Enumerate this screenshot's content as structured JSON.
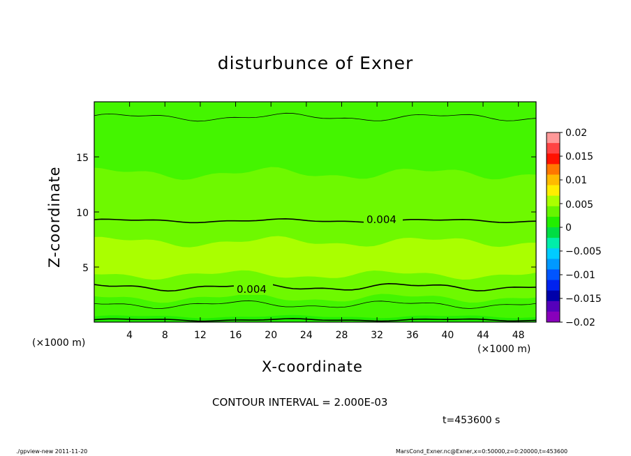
{
  "chart_data": {
    "type": "heatmap",
    "title": "disturbunce of Exner",
    "xlabel": "X-coordinate",
    "ylabel": "Z-coordinate",
    "x_unit": "(×1000 m)",
    "xlim": [
      0,
      50
    ],
    "ylim": [
      0,
      20
    ],
    "x_ticks": [
      4,
      8,
      12,
      16,
      20,
      24,
      28,
      32,
      36,
      40,
      44,
      48
    ],
    "y_ticks": [
      5,
      10,
      15
    ],
    "colorbar": {
      "ticks": [
        "0.02",
        "0.015",
        "0.01",
        "0.005",
        "0",
        "−0.005",
        "−0.01",
        "−0.015",
        "−0.02"
      ],
      "range": [
        -0.02,
        0.02
      ]
    },
    "contour_labels": [
      "0.004",
      "0.004"
    ],
    "contour_interval": "CONTOUR INTERVAL = 2.000E-03",
    "time": "t=453600 s",
    "field_description": "Positive disturbance throughout; maximum (~0.005–0.006) near z≈5–8 km, decreasing toward the top and bottom; 0.004 contour near z≈9.2 km and z≈3.2 km."
  },
  "footer": {
    "left": "./gpview-new   2011-11-20",
    "right": "MarsCond_Exner.nc@Exner,x=0:50000,z=0:20000,t=453600"
  },
  "colors": {
    "band_0_002": "#22ee00",
    "band_002_004": "#44f500",
    "band_004_005": "#6ef900",
    "band_005_006": "#aaff00"
  }
}
